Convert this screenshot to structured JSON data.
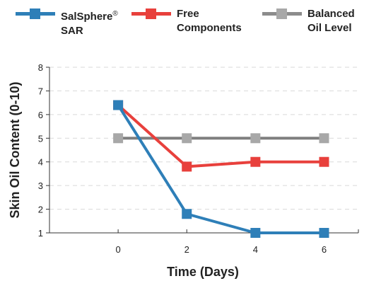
{
  "chart_data": {
    "type": "line",
    "xlabel": "Time (Days)",
    "ylabel": "Skin Oil Content (0-10)",
    "x": [
      0,
      2,
      4,
      6
    ],
    "xticks": [
      "0",
      "2",
      "4",
      "6"
    ],
    "xlim": [
      -2,
      7
    ],
    "ylim": [
      1,
      8
    ],
    "yticks": [
      "1",
      "2",
      "3",
      "4",
      "5",
      "6",
      "7",
      "8"
    ],
    "grid": true,
    "legend_position": "top",
    "series": [
      {
        "name_main": "SalSphere",
        "name_sup": "®",
        "name_line2": "SAR",
        "color": "#2e7fb8",
        "values": [
          6.4,
          1.8,
          1.0,
          1.0
        ]
      },
      {
        "name_main": "Free",
        "name_sup": "",
        "name_line2": "Components",
        "color": "#e8403c",
        "values": [
          6.4,
          3.8,
          4.0,
          4.0
        ]
      },
      {
        "name_main": "Balanced",
        "name_sup": "",
        "name_line2": "Oil Level",
        "color": "#7f7f7f",
        "marker_color": "#a8a8a8",
        "values": [
          5.0,
          5.0,
          5.0,
          5.0
        ]
      }
    ]
  }
}
